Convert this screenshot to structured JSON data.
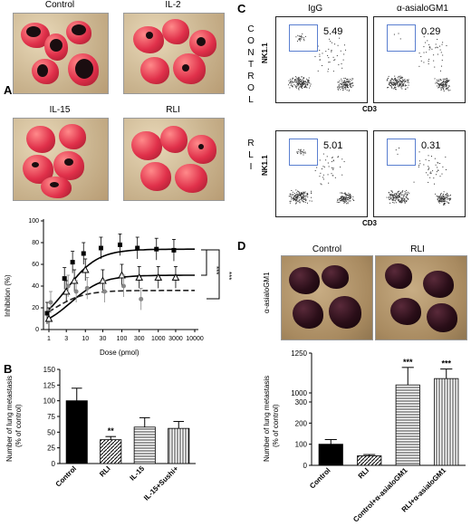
{
  "panelA": {
    "label": "A",
    "photos": [
      {
        "caption": "Control"
      },
      {
        "caption": "IL-2"
      },
      {
        "caption": "IL-15"
      },
      {
        "caption": "RLI"
      }
    ],
    "chart": {
      "ylabel": "Inhibition (%)",
      "xlabel": "Dose (pmol)",
      "yticks": [
        "0",
        "20",
        "40",
        "60",
        "80",
        "100"
      ],
      "xticks": [
        "1",
        "3",
        "10",
        "30",
        "100",
        "300",
        "1000",
        "3000",
        "10000"
      ],
      "sig": [
        "***",
        "***"
      ]
    }
  },
  "panelB": {
    "label": "B",
    "ylabel1": "Number of lung metastasis",
    "ylabel2": "(% of control)",
    "yticks": [
      "0",
      "25",
      "50",
      "75",
      "100",
      "125",
      "150"
    ],
    "categories": [
      "Control",
      "RLI",
      "IL-15",
      "IL-15+Sushi+"
    ],
    "sig": "**"
  },
  "panelC": {
    "label": "C",
    "col_headers": [
      "IgG",
      "α-asialoGM1"
    ],
    "row_labels": [
      "CONTROL",
      "RLI"
    ],
    "values": [
      "5.49",
      "0.29",
      "5.01",
      "0.31"
    ],
    "ylabel": "NK1.1",
    "xlabel": "CD3"
  },
  "panelD": {
    "label": "D",
    "photo_captions": [
      "Control",
      "RLI"
    ],
    "side_label": "α-asialoGM1",
    "ylabel1": "Number of lung metastasis",
    "ylabel2": "(% of control)",
    "yticks": [
      "0",
      "100",
      "200",
      "300",
      "1000",
      "1250"
    ],
    "categories": [
      "Control",
      "RLI",
      "Control+α-asialoGM1",
      "RLI+α-asialoGM1"
    ],
    "sig": [
      "***",
      "***"
    ]
  },
  "chart_data": [
    {
      "type": "line",
      "ylabel": "Inhibition (%)",
      "xlabel": "Dose (pmol)",
      "ylim": [
        0,
        100
      ],
      "series": [
        {
          "x": [
            1,
            3,
            5,
            10,
            30,
            100,
            300,
            1000,
            3000
          ],
          "y": [
            15,
            47,
            62,
            70,
            75,
            78,
            75,
            74,
            73
          ]
        },
        {
          "x": [
            1,
            3,
            5,
            10,
            30,
            100,
            300,
            1000,
            3000
          ],
          "y": [
            10,
            35,
            45,
            55,
            45,
            50,
            48,
            48,
            48
          ]
        },
        {
          "x": [
            1,
            3,
            5,
            10,
            30,
            100,
            300
          ],
          "y": [
            25,
            40,
            35,
            38,
            35,
            40,
            28
          ]
        }
      ]
    },
    {
      "type": "bar",
      "categories": [
        "Control",
        "RLI",
        "IL-15",
        "IL-15+Sushi+"
      ],
      "values": [
        100,
        38,
        58,
        56
      ],
      "ylabel": "Number of lung metastasis (% of control)",
      "ylim": [
        0,
        150
      ]
    },
    {
      "type": "bar",
      "categories": [
        "Control",
        "RLI",
        "Control+α-asialoGM1",
        "RLI+α-asialoGM1"
      ],
      "values": [
        100,
        45,
        1050,
        1090
      ],
      "ylabel": "Number of lung metastasis (% of control)",
      "ylim": [
        0,
        1250
      ]
    }
  ]
}
